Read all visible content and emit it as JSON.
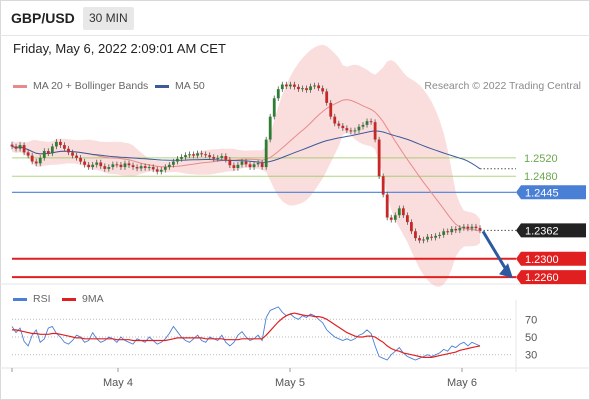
{
  "header": {
    "symbol": "GBP/USD",
    "timeframe": "30 MIN"
  },
  "datetime": "Friday, May 6, 2022 2:09:01 AM CET",
  "copyright": "Research © 2022 Trading Central",
  "legend": {
    "ma20_label": "MA 20 + Bollinger Bands",
    "ma50_label": "MA 50",
    "rsi_label": "RSI",
    "ma9_label": "9MA"
  },
  "colors": {
    "bollinger": "#f4b6b6",
    "ma20": "#e88a8a",
    "ma50": "#3d5a99",
    "candle_up": "#2e7d32",
    "candle_down": "#c62828",
    "rsi": "#4a7fd6",
    "ma9": "#e02020",
    "level_green": "#8bc34a",
    "level_blue": "#4a7fd6",
    "level_red": "#e02020",
    "current_price": "#222222",
    "arrow": "#2c5aa0"
  },
  "chart_data": [
    {
      "type": "candlestick",
      "title": "GBP/USD",
      "x_tick_labels": [
        "May 4",
        "May 5",
        "May 6"
      ],
      "ylim": [
        1.2245,
        1.2655
      ],
      "levels": [
        {
          "value": 1.252,
          "label": "1.2520",
          "kind": "resistance-light"
        },
        {
          "value": 1.248,
          "label": "1.2480",
          "kind": "resistance-light"
        },
        {
          "value": 1.2445,
          "label": "1.2445",
          "kind": "resistance"
        },
        {
          "value": 1.2362,
          "label": "1.2362",
          "kind": "current-price"
        },
        {
          "value": 1.23,
          "label": "1.2300",
          "kind": "target"
        },
        {
          "value": 1.226,
          "label": "1.2260",
          "kind": "target"
        }
      ],
      "close_series": [
        1.2545,
        1.254,
        1.2548,
        1.2532,
        1.2525,
        1.2512,
        1.2508,
        1.252,
        1.2535,
        1.253,
        1.2545,
        1.2555,
        1.2548,
        1.254,
        1.2532,
        1.2525,
        1.252,
        1.2512,
        1.2505,
        1.25,
        1.2505,
        1.251,
        1.2502,
        1.2496,
        1.25,
        1.2506,
        1.2505,
        1.25,
        1.2508,
        1.2504,
        1.25,
        1.2497,
        1.2502,
        1.2498,
        1.25,
        1.2495,
        1.249,
        1.2494,
        1.25,
        1.2505,
        1.2512,
        1.2518,
        1.2522,
        1.2526,
        1.2528,
        1.2525,
        1.253,
        1.2528,
        1.2526,
        1.2522,
        1.2518,
        1.252,
        1.2524,
        1.2516,
        1.2504,
        1.2498,
        1.2505,
        1.2512,
        1.2506,
        1.25,
        1.2506,
        1.2509,
        1.25,
        1.256,
        1.261,
        1.265,
        1.267,
        1.268,
        1.2676,
        1.268,
        1.2675,
        1.267,
        1.2672,
        1.2668,
        1.2676,
        1.2678,
        1.2672,
        1.2665,
        1.264,
        1.261,
        1.2595,
        1.259,
        1.2585,
        1.258,
        1.2578,
        1.258,
        1.2588,
        1.2592,
        1.26,
        1.2598,
        1.256,
        1.248,
        1.244,
        1.239,
        1.2385,
        1.2395,
        1.241,
        1.2395,
        1.238,
        1.236,
        1.2345,
        1.234,
        1.2342,
        1.2348,
        1.2346,
        1.235,
        1.2352,
        1.236,
        1.2358,
        1.2365,
        1.2362,
        1.2367,
        1.237,
        1.2366,
        1.237,
        1.2367,
        1.2362
      ],
      "series": [
        {
          "name": "MA 20 + Bollinger Bands"
        },
        {
          "name": "MA 50"
        }
      ]
    },
    {
      "type": "line",
      "title": "",
      "y_tick_labels": [
        "70",
        "50",
        "30"
      ],
      "y_ticks": [
        70,
        50,
        30
      ],
      "ylim": [
        15,
        85
      ],
      "series": [
        {
          "name": "RSI",
          "values": [
            62,
            55,
            60,
            45,
            40,
            52,
            58,
            44,
            48,
            60,
            62,
            54,
            50,
            44,
            42,
            46,
            52,
            50,
            44,
            46,
            55,
            48,
            44,
            46,
            50,
            48,
            44,
            50,
            46,
            44,
            42,
            48,
            46,
            44,
            50,
            46,
            42,
            44,
            48,
            54,
            62,
            56,
            50,
            46,
            44,
            48,
            52,
            46,
            44,
            50,
            48,
            46,
            52,
            44,
            40,
            44,
            52,
            56,
            50,
            46,
            48,
            52,
            46,
            72,
            80,
            82,
            84,
            78,
            74,
            76,
            72,
            70,
            74,
            72,
            76,
            74,
            70,
            66,
            58,
            54,
            50,
            48,
            46,
            48,
            46,
            48,
            52,
            54,
            58,
            54,
            40,
            28,
            26,
            24,
            30,
            34,
            38,
            32,
            28,
            26,
            24,
            26,
            28,
            30,
            28,
            30,
            32,
            36,
            34,
            40,
            38,
            42,
            44,
            40,
            44,
            42,
            40
          ]
        },
        {
          "name": "9MA",
          "values": [
            58,
            58,
            57,
            56,
            55,
            54,
            54,
            53,
            53,
            53,
            54,
            54,
            53,
            52,
            51,
            50,
            49,
            49,
            48,
            48,
            48,
            48,
            48,
            48,
            48,
            48,
            47,
            47,
            47,
            47,
            46,
            46,
            46,
            46,
            46,
            46,
            46,
            46,
            46,
            47,
            48,
            49,
            49,
            49,
            49,
            49,
            49,
            49,
            48,
            48,
            48,
            48,
            48,
            47,
            47,
            47,
            47,
            48,
            48,
            48,
            48,
            48,
            48,
            52,
            57,
            62,
            67,
            71,
            74,
            76,
            77,
            76,
            75,
            74,
            74,
            73,
            73,
            72,
            70,
            67,
            64,
            61,
            58,
            55,
            53,
            51,
            50,
            50,
            51,
            51,
            50,
            47,
            44,
            40,
            37,
            35,
            34,
            32,
            31,
            30,
            29,
            28,
            27,
            27,
            27,
            28,
            29,
            30,
            31,
            32,
            33,
            35,
            36,
            37,
            38,
            39,
            40
          ]
        }
      ]
    }
  ]
}
